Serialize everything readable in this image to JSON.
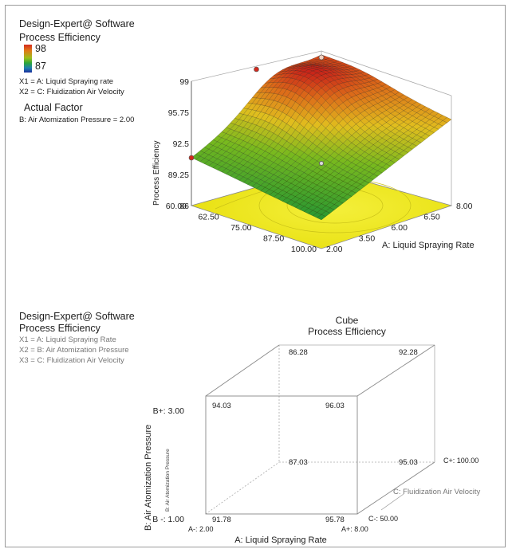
{
  "panel1": {
    "software": "Design-Expert@ Software",
    "response": "Process Efficiency",
    "legend_high": "98",
    "legend_low": "87",
    "x1": "X1 = A: Liquid Spraying rate",
    "x2": "X2 = C: Fluidization Air Velocity",
    "actual_factor_title": "Actual Factor",
    "actual_factor": "B: Air Atomization Pressure = 2.00"
  },
  "panel2": {
    "software": "Design-Expert@ Software",
    "response": "Process Efficiency",
    "x1": "X1 = A: Liquid Spraying Rate",
    "x2": "X2 = B: Air Atomization Pressure",
    "x3": "X3 = C: Fluidization Air Velocity"
  },
  "colors": {
    "surface_high": "#d42a1e",
    "surface_mid": "#e0b21c",
    "surface_low": "#2a9a3a",
    "floor_contour": "#f2ec1a",
    "design_point": "#d22a1e"
  },
  "chart_data": [
    {
      "type": "surface3d",
      "zlabel": "Process Efficiency",
      "xlabel": "A: Liquid Spraying Rate",
      "ylabel": "",
      "x_ticks": [
        "2.00",
        "3.50",
        "6.00",
        "6.50",
        "8.00"
      ],
      "y_ticks": [
        "60.00",
        "62.50",
        "75.00",
        "87.50",
        "100.00"
      ],
      "z_ticks": [
        "86",
        "89.25",
        "92.5",
        "95.75",
        "99"
      ],
      "zlim": [
        86,
        99
      ],
      "surface": {
        "x": [
          2,
          8
        ],
        "y": [
          60,
          100
        ],
        "z_at_corners": {
          "x2_y60": 89,
          "x8_y60": 95,
          "x2_y100": 91,
          "x8_y100": 97
        },
        "z_peak": 98
      }
    },
    {
      "type": "cube",
      "title": "Cube",
      "subtitle": "Process Efficiency",
      "xlabel": "A: Liquid Spraying Rate",
      "ylabel": "B: Air Atomization Pressure",
      "zlabel": "C: Fluidization Air Velocity",
      "inner_label": "B: Air Atomization Pressure",
      "x_low_label": "A-: 2.00",
      "x_high_label": "A+: 8.00",
      "y_low_label": "B -: 1.00",
      "y_high_label": "B+: 3.00",
      "z_low_label": "C-: 50.00",
      "z_high_label": "C+: 100.00",
      "corners": [
        {
          "A": "-",
          "B": "-",
          "C": "-",
          "value": "91.78"
        },
        {
          "A": "+",
          "B": "-",
          "C": "-",
          "value": "95.78"
        },
        {
          "A": "-",
          "B": "+",
          "C": "-",
          "value": "94.03"
        },
        {
          "A": "+",
          "B": "+",
          "C": "-",
          "value": "96.03"
        },
        {
          "A": "-",
          "B": "-",
          "C": "+",
          "value": "87.03"
        },
        {
          "A": "+",
          "B": "-",
          "C": "+",
          "value": "95.03"
        },
        {
          "A": "-",
          "B": "+",
          "C": "+",
          "value": "86.28"
        },
        {
          "A": "+",
          "B": "+",
          "C": "+",
          "value": "92.28"
        }
      ]
    }
  ]
}
